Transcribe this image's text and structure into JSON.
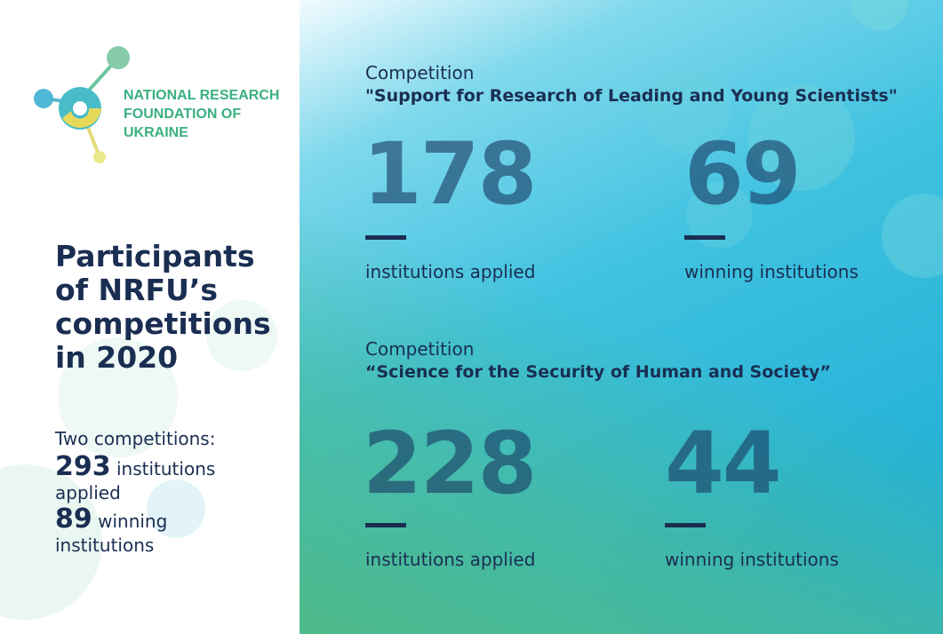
{
  "logo": {
    "text": "NATIONAL RESEARCH FOUNDATION OF UKRAINE"
  },
  "title": "Participants of NRFU’s competitions in 2020",
  "summary": {
    "intro": "Two competitions:",
    "applied_count": "293",
    "applied_label": "institutions applied",
    "winning_count": "89",
    "winning_label": "winning institutions"
  },
  "competitions": [
    {
      "label": "Competition",
      "name": "\"Support for Research of Leading and Young Scientists\"",
      "applied": "178",
      "applied_label": "institutions applied",
      "winning": "69",
      "winning_label": "winning institutions"
    },
    {
      "label": "Competition",
      "name": "“Science for the Security of Human and Society”",
      "applied": "228",
      "applied_label": "institutions applied",
      "winning": "44",
      "winning_label": "winning institutions"
    }
  ]
}
